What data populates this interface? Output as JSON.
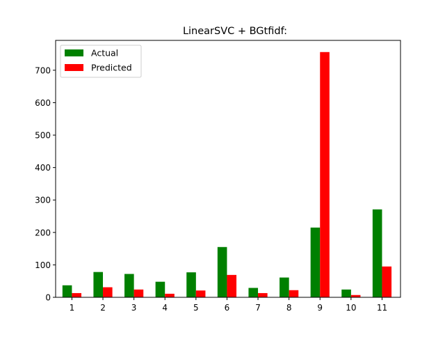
{
  "chart_data": {
    "type": "bar",
    "title": "LinearSVC + BGtfidf:",
    "xlabel": "",
    "ylabel": "",
    "categories": [
      "1",
      "2",
      "3",
      "4",
      "5",
      "6",
      "7",
      "8",
      "9",
      "10",
      "11"
    ],
    "series": [
      {
        "name": "Actual",
        "color": "#008000",
        "values": [
          37,
          78,
          72,
          48,
          77,
          155,
          29,
          61,
          215,
          24,
          271
        ]
      },
      {
        "name": "Predicted",
        "color": "#ff0000",
        "values": [
          13,
          31,
          24,
          11,
          21,
          69,
          13,
          22,
          756,
          7,
          95
        ]
      }
    ],
    "ylim": [
      0,
      792
    ],
    "yticks": [
      0,
      100,
      200,
      300,
      400,
      500,
      600,
      700
    ],
    "grid": false,
    "legend_position": "upper-left"
  }
}
